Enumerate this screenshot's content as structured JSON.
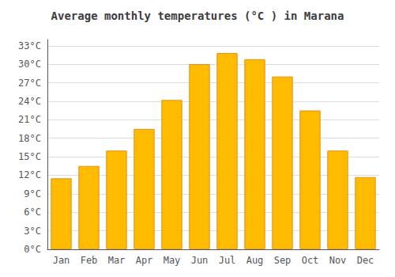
{
  "chart_data": {
    "type": "bar",
    "title": "Average monthly temperatures (°C ) in Marana",
    "categories": [
      "Jan",
      "Feb",
      "Mar",
      "Apr",
      "May",
      "Jun",
      "Jul",
      "Aug",
      "Sep",
      "Oct",
      "Nov",
      "Dec"
    ],
    "values": [
      11.5,
      13.5,
      16.0,
      19.5,
      24.2,
      30.0,
      31.8,
      30.8,
      28.0,
      22.5,
      16.0,
      11.7
    ],
    "color": "#FFBB00",
    "ylim": [
      0,
      34
    ],
    "yticks": [
      {
        "value": 0,
        "label": "0°C"
      },
      {
        "value": 3,
        "label": "3°C"
      },
      {
        "value": 6,
        "label": "6°C"
      },
      {
        "value": 9,
        "label": "9°C"
      },
      {
        "value": 12,
        "label": "12°C"
      },
      {
        "value": 15,
        "label": "15°C"
      },
      {
        "value": 18,
        "label": "18°C"
      },
      {
        "value": 21,
        "label": "21°C"
      },
      {
        "value": 24,
        "label": "24°C"
      },
      {
        "value": 27,
        "label": "27°C"
      },
      {
        "value": 30,
        "label": "30°C"
      },
      {
        "value": 33,
        "label": "33°C"
      }
    ],
    "grid": true
  }
}
